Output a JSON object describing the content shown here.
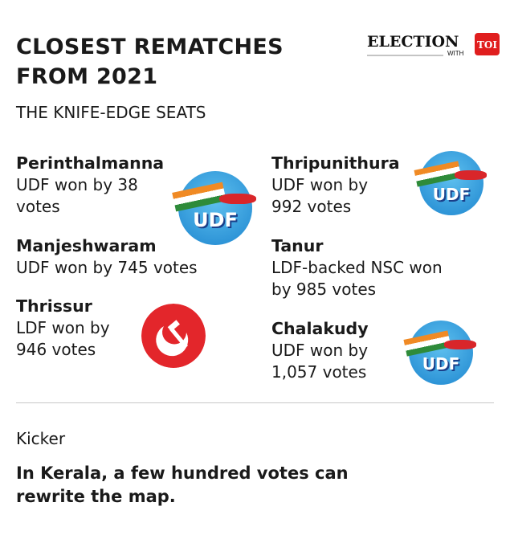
{
  "header": {
    "title_line1": "CLOSEST REMATCHES",
    "title_line2": "FROM 2021",
    "subtitle": "THE KNIFE-EDGE SEATS"
  },
  "logo": {
    "word": "ELECTION",
    "with": "WITH",
    "brand": "TOI",
    "brand_color": "#e01e1e"
  },
  "seats": [
    {
      "name": "Perinthalmanna",
      "result_line1": "UDF won by 38",
      "result_line2": "votes",
      "badge": "UDF"
    },
    {
      "name": "Manjeshwaram",
      "result_line1": "UDF won by 745 votes",
      "result_line2": ""
    },
    {
      "name": "Thrissur",
      "result_line1": "LDF won by",
      "result_line2": "946 votes",
      "badge": "hammer-sickle"
    },
    {
      "name": "Thripunithura",
      "result_line1": "UDF won by",
      "result_line2": "992 votes",
      "badge": "UDF"
    },
    {
      "name": "Tanur",
      "result_line1": "LDF-backed NSC won",
      "result_line2": "by 985 votes"
    },
    {
      "name": "Chalakudy",
      "result_line1": "UDF won by",
      "result_line2": "1,057 votes",
      "badge": "UDF"
    }
  ],
  "colors": {
    "udf_blue": "#2a96db",
    "ldf_red": "#e3262b"
  },
  "footer": {
    "kicker_label": "Kicker",
    "kicker_text": "In Kerala, a few hundred votes can rewrite the map."
  }
}
